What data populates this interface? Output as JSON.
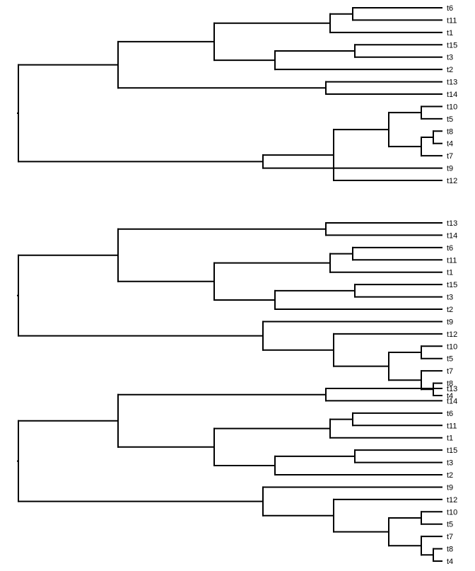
{
  "trees": [
    {
      "tips": [
        "t6",
        "t11",
        "t1",
        "t15",
        "t3",
        "t2",
        "t13",
        "t14",
        "t10",
        "t5",
        "t8",
        "t4",
        "t7",
        "t9",
        "t12"
      ]
    },
    {
      "tips": [
        "t13",
        "t14",
        "t6",
        "t11",
        "t1",
        "t15",
        "t3",
        "t2",
        "t9",
        "t12",
        "t10",
        "t5",
        "t7",
        "t8",
        "t4"
      ]
    },
    {
      "tips": [
        "t13",
        "t14",
        "t6",
        "t11",
        "t1",
        "t15",
        "t3",
        "t2",
        "t9",
        "t12",
        "t10",
        "t5",
        "t7",
        "t8",
        "t4"
      ]
    }
  ],
  "colors": {
    "branch": "#000000",
    "label": "#000000",
    "background": "#ffffff"
  }
}
